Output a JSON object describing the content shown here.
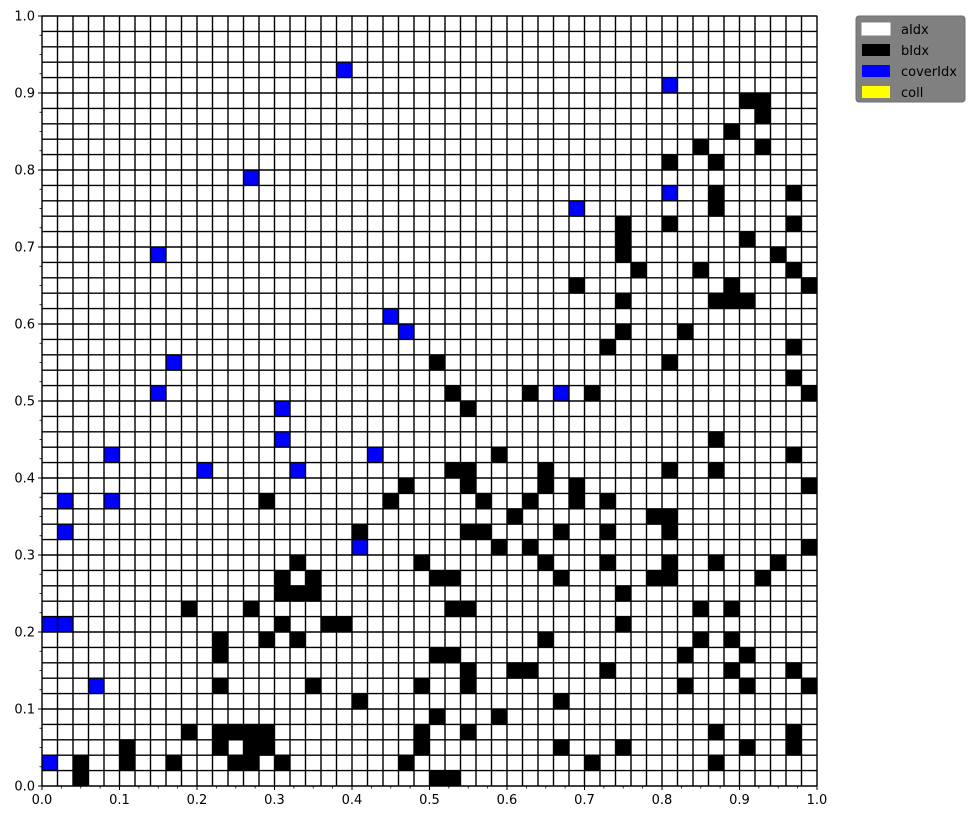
{
  "chart_data": {
    "type": "heatmap",
    "title": "",
    "xlabel": "",
    "ylabel": "",
    "xlim": [
      0,
      1
    ],
    "ylim": [
      0,
      1
    ],
    "grid_size": 50,
    "grid": true,
    "x_ticks": [
      "0.0",
      "0.1",
      "0.2",
      "0.3",
      "0.4",
      "0.5",
      "0.6",
      "0.7",
      "0.8",
      "0.9",
      "1.0"
    ],
    "y_ticks": [
      "0.0",
      "0.1",
      "0.2",
      "0.3",
      "0.4",
      "0.5",
      "0.6",
      "0.7",
      "0.8",
      "0.9",
      "1.0"
    ],
    "legend": {
      "placement": "outside-top-right",
      "entries": [
        {
          "label": "aIdx",
          "color": "#ffffff"
        },
        {
          "label": "bIdx",
          "color": "#000000"
        },
        {
          "label": "coverIdx",
          "color": "#0000ff"
        },
        {
          "label": "coll",
          "color": "#ffff00"
        }
      ]
    },
    "series": [
      {
        "name": "bIdx",
        "color": "#000000",
        "points": [
          [
            0.91,
            0.89
          ],
          [
            0.93,
            0.89
          ],
          [
            0.93,
            0.87
          ],
          [
            0.89,
            0.85
          ],
          [
            0.85,
            0.83
          ],
          [
            0.93,
            0.83
          ],
          [
            0.81,
            0.81
          ],
          [
            0.87,
            0.81
          ],
          [
            0.87,
            0.77
          ],
          [
            0.97,
            0.77
          ],
          [
            0.87,
            0.75
          ],
          [
            0.75,
            0.73
          ],
          [
            0.81,
            0.73
          ],
          [
            0.97,
            0.73
          ],
          [
            0.75,
            0.71
          ],
          [
            0.91,
            0.71
          ],
          [
            0.75,
            0.69
          ],
          [
            0.95,
            0.69
          ],
          [
            0.77,
            0.67
          ],
          [
            0.85,
            0.67
          ],
          [
            0.97,
            0.67
          ],
          [
            0.69,
            0.65
          ],
          [
            0.89,
            0.65
          ],
          [
            0.99,
            0.65
          ],
          [
            0.75,
            0.63
          ],
          [
            0.87,
            0.63
          ],
          [
            0.89,
            0.63
          ],
          [
            0.91,
            0.63
          ],
          [
            0.75,
            0.59
          ],
          [
            0.83,
            0.59
          ],
          [
            0.73,
            0.57
          ],
          [
            0.97,
            0.57
          ],
          [
            0.51,
            0.55
          ],
          [
            0.81,
            0.55
          ],
          [
            0.97,
            0.53
          ],
          [
            0.53,
            0.51
          ],
          [
            0.63,
            0.51
          ],
          [
            0.71,
            0.51
          ],
          [
            0.99,
            0.51
          ],
          [
            0.55,
            0.49
          ],
          [
            0.87,
            0.45
          ],
          [
            0.59,
            0.43
          ],
          [
            0.97,
            0.43
          ],
          [
            0.53,
            0.41
          ],
          [
            0.55,
            0.41
          ],
          [
            0.65,
            0.41
          ],
          [
            0.81,
            0.41
          ],
          [
            0.87,
            0.41
          ],
          [
            0.47,
            0.39
          ],
          [
            0.55,
            0.39
          ],
          [
            0.65,
            0.39
          ],
          [
            0.69,
            0.39
          ],
          [
            0.99,
            0.39
          ],
          [
            0.29,
            0.37
          ],
          [
            0.45,
            0.37
          ],
          [
            0.57,
            0.37
          ],
          [
            0.63,
            0.37
          ],
          [
            0.69,
            0.37
          ],
          [
            0.73,
            0.37
          ],
          [
            0.61,
            0.35
          ],
          [
            0.79,
            0.35
          ],
          [
            0.81,
            0.35
          ],
          [
            0.41,
            0.33
          ],
          [
            0.55,
            0.33
          ],
          [
            0.57,
            0.33
          ],
          [
            0.67,
            0.33
          ],
          [
            0.73,
            0.33
          ],
          [
            0.81,
            0.33
          ],
          [
            0.59,
            0.31
          ],
          [
            0.63,
            0.31
          ],
          [
            0.99,
            0.31
          ],
          [
            0.33,
            0.29
          ],
          [
            0.49,
            0.29
          ],
          [
            0.65,
            0.29
          ],
          [
            0.73,
            0.29
          ],
          [
            0.81,
            0.29
          ],
          [
            0.87,
            0.29
          ],
          [
            0.95,
            0.29
          ],
          [
            0.31,
            0.27
          ],
          [
            0.35,
            0.27
          ],
          [
            0.51,
            0.27
          ],
          [
            0.53,
            0.27
          ],
          [
            0.67,
            0.27
          ],
          [
            0.79,
            0.27
          ],
          [
            0.81,
            0.27
          ],
          [
            0.93,
            0.27
          ],
          [
            0.31,
            0.25
          ],
          [
            0.33,
            0.25
          ],
          [
            0.35,
            0.25
          ],
          [
            0.75,
            0.25
          ],
          [
            0.19,
            0.23
          ],
          [
            0.27,
            0.23
          ],
          [
            0.53,
            0.23
          ],
          [
            0.55,
            0.23
          ],
          [
            0.85,
            0.23
          ],
          [
            0.89,
            0.23
          ],
          [
            0.31,
            0.21
          ],
          [
            0.37,
            0.21
          ],
          [
            0.39,
            0.21
          ],
          [
            0.75,
            0.21
          ],
          [
            0.23,
            0.19
          ],
          [
            0.29,
            0.19
          ],
          [
            0.33,
            0.19
          ],
          [
            0.65,
            0.19
          ],
          [
            0.85,
            0.19
          ],
          [
            0.89,
            0.19
          ],
          [
            0.23,
            0.17
          ],
          [
            0.51,
            0.17
          ],
          [
            0.53,
            0.17
          ],
          [
            0.83,
            0.17
          ],
          [
            0.91,
            0.17
          ],
          [
            0.55,
            0.15
          ],
          [
            0.61,
            0.15
          ],
          [
            0.63,
            0.15
          ],
          [
            0.73,
            0.15
          ],
          [
            0.89,
            0.15
          ],
          [
            0.97,
            0.15
          ],
          [
            0.23,
            0.13
          ],
          [
            0.35,
            0.13
          ],
          [
            0.49,
            0.13
          ],
          [
            0.55,
            0.13
          ],
          [
            0.83,
            0.13
          ],
          [
            0.91,
            0.13
          ],
          [
            0.99,
            0.13
          ],
          [
            0.41,
            0.11
          ],
          [
            0.67,
            0.11
          ],
          [
            0.51,
            0.09
          ],
          [
            0.59,
            0.09
          ],
          [
            0.19,
            0.07
          ],
          [
            0.23,
            0.07
          ],
          [
            0.25,
            0.07
          ],
          [
            0.27,
            0.07
          ],
          [
            0.29,
            0.07
          ],
          [
            0.49,
            0.07
          ],
          [
            0.55,
            0.07
          ],
          [
            0.87,
            0.07
          ],
          [
            0.97,
            0.07
          ],
          [
            0.11,
            0.05
          ],
          [
            0.23,
            0.05
          ],
          [
            0.27,
            0.05
          ],
          [
            0.29,
            0.05
          ],
          [
            0.49,
            0.05
          ],
          [
            0.67,
            0.05
          ],
          [
            0.75,
            0.05
          ],
          [
            0.91,
            0.05
          ],
          [
            0.97,
            0.05
          ],
          [
            0.05,
            0.03
          ],
          [
            0.11,
            0.03
          ],
          [
            0.17,
            0.03
          ],
          [
            0.25,
            0.03
          ],
          [
            0.27,
            0.03
          ],
          [
            0.31,
            0.03
          ],
          [
            0.47,
            0.03
          ],
          [
            0.71,
            0.03
          ],
          [
            0.87,
            0.03
          ],
          [
            0.05,
            0.01
          ],
          [
            0.51,
            0.01
          ],
          [
            0.53,
            0.01
          ]
        ]
      },
      {
        "name": "coverIdx",
        "color": "#0000ff",
        "points": [
          [
            0.39,
            0.93
          ],
          [
            0.81,
            0.91
          ],
          [
            0.27,
            0.79
          ],
          [
            0.81,
            0.77
          ],
          [
            0.69,
            0.75
          ],
          [
            0.15,
            0.69
          ],
          [
            0.45,
            0.61
          ],
          [
            0.47,
            0.59
          ],
          [
            0.17,
            0.55
          ],
          [
            0.15,
            0.51
          ],
          [
            0.67,
            0.51
          ],
          [
            0.31,
            0.49
          ],
          [
            0.31,
            0.45
          ],
          [
            0.09,
            0.43
          ],
          [
            0.43,
            0.43
          ],
          [
            0.21,
            0.41
          ],
          [
            0.33,
            0.41
          ],
          [
            0.03,
            0.37
          ],
          [
            0.09,
            0.37
          ],
          [
            0.03,
            0.33
          ],
          [
            0.41,
            0.31
          ],
          [
            0.01,
            0.21
          ],
          [
            0.03,
            0.21
          ],
          [
            0.07,
            0.13
          ],
          [
            0.01,
            0.03
          ]
        ]
      }
    ]
  }
}
